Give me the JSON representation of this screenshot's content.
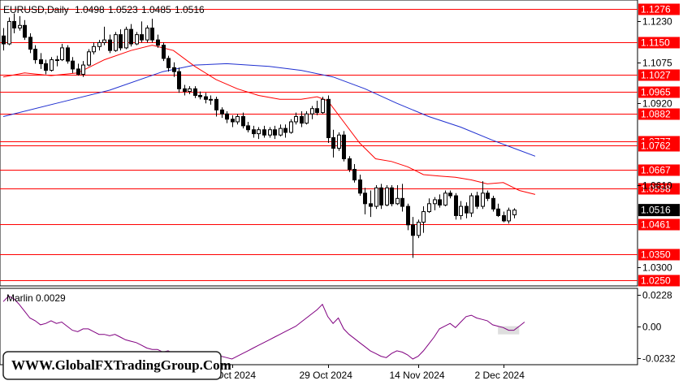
{
  "window": {
    "symbol": "EURUSD,Daily",
    "ohlc": [
      "1.0498",
      "1.0523",
      "1.0485",
      "1.0516"
    ],
    "indicator_label": "Marlin 0.0029",
    "watermark": "WWW.GlobalFXTradingGroup.Com"
  },
  "colors": {
    "background": "#ffffff",
    "candle_bull": "#ffffff",
    "candle_bear": "#000000",
    "level_line": "#ff0000",
    "level_label_bg": "#ff0000",
    "ma_fast": "#ff0000",
    "ma_slow": "#1f2fd0",
    "oscillator": "#800080",
    "current_price_bg": "#000000"
  },
  "chart_data": [
    {
      "type": "candlestick",
      "ylim": [
        1.0235,
        1.1305
      ],
      "price_ticks": [
        "1.1230",
        "1.1075",
        "1.0920",
        "1.0610",
        "1.0300"
      ],
      "date_labels": [
        "11 Oct 2024",
        "29 Oct 2024",
        "14 Nov 2024",
        "2 Dec 2024"
      ],
      "levels": [
        "1.1276",
        "1.1150",
        "1.1027",
        "1.0965",
        "1.0882",
        "1.0777",
        "1.0762",
        "1.0667",
        "1.0598",
        "1.0461",
        "1.0350",
        "1.0250"
      ],
      "current_price": "1.0516",
      "candles": [
        [
          1.1175,
          1.1205,
          1.112,
          1.1145
        ],
        [
          1.1145,
          1.1245,
          1.114,
          1.123
        ],
        [
          1.123,
          1.126,
          1.1185,
          1.1205
        ],
        [
          1.1205,
          1.125,
          1.1195,
          1.1215
        ],
        [
          1.1215,
          1.1235,
          1.116,
          1.117
        ],
        [
          1.117,
          1.1185,
          1.111,
          1.1125
        ],
        [
          1.1125,
          1.114,
          1.107,
          1.1085
        ],
        [
          1.1085,
          1.111,
          1.105,
          1.107
        ],
        [
          1.107,
          1.1085,
          1.103,
          1.1045
        ],
        [
          1.1045,
          1.1095,
          1.104,
          1.1085
        ],
        [
          1.1085,
          1.11,
          1.106,
          1.1085
        ],
        [
          1.1085,
          1.1145,
          1.108,
          1.113
        ],
        [
          1.113,
          1.114,
          1.107,
          1.108
        ],
        [
          1.108,
          1.1095,
          1.1035,
          1.105
        ],
        [
          1.105,
          1.107,
          1.1025,
          1.103
        ],
        [
          1.103,
          1.108,
          1.102,
          1.1065
        ],
        [
          1.1065,
          1.1125,
          1.106,
          1.1115
        ],
        [
          1.1115,
          1.115,
          1.1105,
          1.1135
        ],
        [
          1.1135,
          1.116,
          1.112,
          1.115
        ],
        [
          1.115,
          1.121,
          1.114,
          1.116
        ],
        [
          1.116,
          1.118,
          1.111,
          1.112
        ],
        [
          1.112,
          1.119,
          1.1115,
          1.118
        ],
        [
          1.118,
          1.12,
          1.112,
          1.113
        ],
        [
          1.113,
          1.121,
          1.1125,
          1.12
        ],
        [
          1.12,
          1.122,
          1.1135,
          1.1145
        ],
        [
          1.1145,
          1.119,
          1.114,
          1.118
        ],
        [
          1.118,
          1.123,
          1.115,
          1.116
        ],
        [
          1.116,
          1.1215,
          1.115,
          1.1205
        ],
        [
          1.1205,
          1.124,
          1.115,
          1.116
        ],
        [
          1.116,
          1.118,
          1.113,
          1.114
        ],
        [
          1.114,
          1.115,
          1.108,
          1.109
        ],
        [
          1.109,
          1.11,
          1.104,
          1.1055
        ],
        [
          1.1055,
          1.1075,
          1.102,
          1.104
        ],
        [
          1.104,
          1.1055,
          1.096,
          1.0975
        ],
        [
          1.0975,
          1.099,
          1.095,
          1.0965
        ],
        [
          1.0965,
          1.0985,
          1.0955,
          1.0975
        ],
        [
          1.0975,
          1.0985,
          1.094,
          1.095
        ],
        [
          1.095,
          1.0965,
          1.0935,
          1.0945
        ],
        [
          1.0945,
          1.096,
          1.092,
          1.0935
        ],
        [
          1.0935,
          1.095,
          1.0915,
          1.0935
        ],
        [
          1.0935,
          1.0945,
          1.087,
          1.0895
        ],
        [
          1.0895,
          1.0905,
          1.0865,
          1.088
        ],
        [
          1.088,
          1.089,
          1.0845,
          1.086
        ],
        [
          1.086,
          1.0875,
          1.083,
          1.085
        ],
        [
          1.085,
          1.088,
          1.084,
          1.087
        ],
        [
          1.087,
          1.0885,
          1.0825,
          1.0835
        ],
        [
          1.0835,
          1.085,
          1.081,
          1.082
        ],
        [
          1.082,
          1.0835,
          1.079,
          1.0805
        ],
        [
          1.0805,
          1.083,
          1.0785,
          1.082
        ],
        [
          1.082,
          1.0835,
          1.079,
          1.08
        ],
        [
          1.08,
          1.083,
          1.079,
          1.082
        ],
        [
          1.082,
          1.0835,
          1.0785,
          1.08
        ],
        [
          1.08,
          1.084,
          1.0795,
          1.0825
        ],
        [
          1.0825,
          1.084,
          1.079,
          1.081
        ],
        [
          1.081,
          1.086,
          1.0805,
          1.085
        ],
        [
          1.085,
          1.0885,
          1.084,
          1.087
        ],
        [
          1.087,
          1.089,
          1.083,
          1.0845
        ],
        [
          1.0845,
          1.089,
          1.084,
          1.088
        ],
        [
          1.088,
          1.091,
          1.086,
          1.09
        ],
        [
          1.09,
          1.093,
          1.0875,
          1.0885
        ],
        [
          1.0885,
          1.0945,
          1.088,
          1.0935
        ],
        [
          1.0935,
          1.095,
          1.077,
          1.079
        ],
        [
          1.079,
          1.082,
          1.0715,
          1.075
        ],
        [
          1.075,
          1.081,
          1.074,
          1.08
        ],
        [
          1.08,
          1.0815,
          1.07,
          1.071
        ],
        [
          1.071,
          1.072,
          1.066,
          1.067
        ],
        [
          1.067,
          1.069,
          1.062,
          1.063
        ],
        [
          1.063,
          1.065,
          1.057,
          1.058
        ],
        [
          1.058,
          1.06,
          1.05,
          1.054
        ],
        [
          1.054,
          1.059,
          1.049,
          1.053
        ],
        [
          1.053,
          1.061,
          1.052,
          1.06
        ],
        [
          1.06,
          1.0615,
          1.052,
          1.0535
        ],
        [
          1.0535,
          1.061,
          1.053,
          1.06
        ],
        [
          1.06,
          1.061,
          1.053,
          1.054
        ],
        [
          1.054,
          1.061,
          1.0535,
          1.056
        ],
        [
          1.056,
          1.0615,
          1.051,
          1.053
        ],
        [
          1.053,
          1.054,
          1.044,
          1.046
        ],
        [
          1.046,
          1.049,
          1.0335,
          1.042
        ],
        [
          1.042,
          1.048,
          1.041,
          1.047
        ],
        [
          1.047,
          1.053,
          1.043,
          1.051
        ],
        [
          1.051,
          1.056,
          1.0505,
          1.054
        ],
        [
          1.054,
          1.0565,
          1.0515,
          1.0555
        ],
        [
          1.0555,
          1.0575,
          1.0525,
          1.0535
        ],
        [
          1.0535,
          1.059,
          1.053,
          1.058
        ],
        [
          1.058,
          1.059,
          1.056,
          1.057
        ],
        [
          1.057,
          1.058,
          1.048,
          1.0495
        ],
        [
          1.0495,
          1.055,
          1.048,
          1.053
        ],
        [
          1.053,
          1.0545,
          1.0485,
          1.0505
        ],
        [
          1.0505,
          1.058,
          1.049,
          1.057
        ],
        [
          1.057,
          1.0585,
          1.052,
          1.053
        ],
        [
          1.053,
          1.0625,
          1.052,
          1.058
        ],
        [
          1.058,
          1.059,
          1.055,
          1.056
        ],
        [
          1.056,
          1.057,
          1.051,
          1.052
        ],
        [
          1.052,
          1.054,
          1.049,
          1.0495
        ],
        [
          1.0495,
          1.051,
          1.047,
          1.0475
        ],
        [
          1.0475,
          1.0525,
          1.0465,
          1.0515
        ],
        [
          1.0498,
          1.0523,
          1.0485,
          1.0516
        ]
      ],
      "ma_fast_points": [
        [
          0,
          1.102
        ],
        [
          4,
          1.1035
        ],
        [
          9,
          1.1025
        ],
        [
          14,
          1.1035
        ],
        [
          19,
          1.1085
        ],
        [
          24,
          1.112
        ],
        [
          28,
          1.114
        ],
        [
          32,
          1.112
        ],
        [
          36,
          1.106
        ],
        [
          40,
          1.101
        ],
        [
          44,
          1.0975
        ],
        [
          48,
          1.095
        ],
        [
          52,
          1.0935
        ],
        [
          56,
          1.0935
        ],
        [
          59,
          1.0945
        ],
        [
          61,
          1.093
        ],
        [
          64,
          1.085
        ],
        [
          67,
          1.077
        ],
        [
          70,
          1.071
        ],
        [
          73,
          1.07
        ],
        [
          76,
          1.068
        ],
        [
          79,
          1.065
        ],
        [
          82,
          1.0645
        ],
        [
          85,
          1.064
        ],
        [
          88,
          1.063
        ],
        [
          91,
          1.0615
        ],
        [
          94,
          1.062
        ],
        [
          97,
          1.059
        ],
        [
          100,
          1.0575
        ]
      ],
      "ma_slow_points": [
        [
          0,
          1.087
        ],
        [
          10,
          1.092
        ],
        [
          20,
          1.097
        ],
        [
          30,
          1.104
        ],
        [
          36,
          1.1065
        ],
        [
          42,
          1.107
        ],
        [
          50,
          1.106
        ],
        [
          56,
          1.1045
        ],
        [
          62,
          1.102
        ],
        [
          68,
          1.0975
        ],
        [
          74,
          1.092
        ],
        [
          80,
          1.087
        ],
        [
          86,
          1.083
        ],
        [
          92,
          1.078
        ],
        [
          100,
          1.072
        ]
      ]
    },
    {
      "type": "line",
      "name": "Marlin",
      "ylim": [
        -0.027,
        0.0265
      ],
      "ticks": [
        "0.0228",
        "0.00",
        "-0.0232"
      ],
      "values": [
        0.018,
        0.022,
        0.02,
        0.016,
        0.011,
        0.006,
        0.004,
        0.001,
        0.002,
        0.004,
        0.002,
        0.003,
        0.0,
        -0.003,
        -0.004,
        -0.002,
        -0.002,
        -0.004,
        -0.006,
        -0.006,
        -0.007,
        -0.006,
        -0.008,
        -0.01,
        -0.011,
        -0.012,
        -0.014,
        -0.016,
        -0.017,
        -0.017,
        -0.019,
        -0.018,
        -0.02,
        -0.02,
        -0.021,
        -0.022,
        -0.021,
        -0.023,
        -0.022,
        -0.023,
        -0.024,
        -0.022,
        -0.023,
        -0.024,
        -0.022,
        -0.02,
        -0.018,
        -0.016,
        -0.014,
        -0.012,
        -0.01,
        -0.008,
        -0.006,
        -0.004,
        -0.002,
        0.0,
        0.003,
        0.006,
        0.009,
        0.012,
        0.016,
        0.007,
        0.002,
        0.006,
        -0.002,
        -0.006,
        -0.009,
        -0.012,
        -0.015,
        -0.018,
        -0.02,
        -0.022,
        -0.023,
        -0.02,
        -0.018,
        -0.019,
        -0.021,
        -0.024,
        -0.022,
        -0.018,
        -0.013,
        -0.008,
        -0.002,
        0.0,
        0.002,
        -0.001,
        0.003,
        0.007,
        0.008,
        0.006,
        0.005,
        0.004,
        0.001,
        0.0,
        -0.001,
        -0.003,
        -0.003,
        0.0,
        0.003
      ],
      "shaded_range": [
        93,
        97
      ]
    }
  ]
}
